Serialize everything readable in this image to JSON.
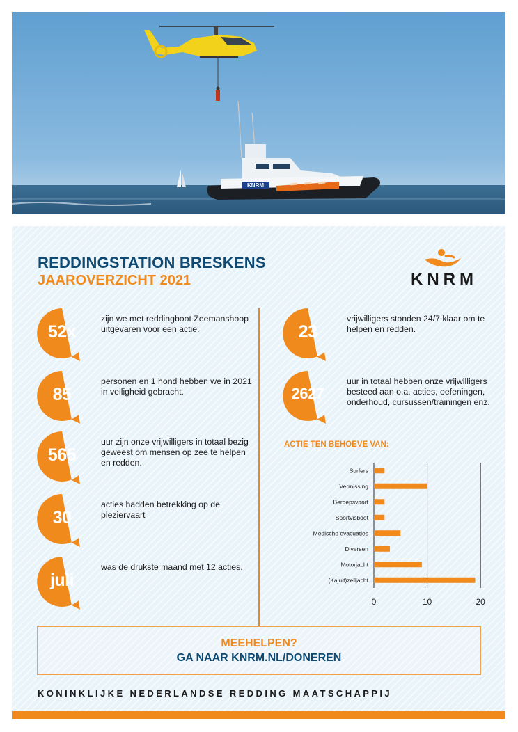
{
  "colors": {
    "orange": "#f18a1c",
    "navy": "#0e4a73",
    "panel": "#e9f3fa"
  },
  "hero": {
    "image": "photo of yellow rescue helicopter hoisting a person above the KNRM lifeboat at sea",
    "boat_label": "KNRM"
  },
  "header": {
    "title": "REDDINGSTATION BRESKENS",
    "subtitle": "JAAROVERZICHT 2021"
  },
  "logo": {
    "text": "KNRM",
    "icon": "knrm-figure-icon"
  },
  "stats_left": [
    {
      "value": "52x",
      "text": "zijn we met reddingboot Zeemanshoop uitgevaren voor een actie."
    },
    {
      "value": "85",
      "text": "personen en 1 hond hebben we in 2021 in veiligheid gebracht."
    },
    {
      "value": "565",
      "text": "uur zijn onze vrijwilligers in totaal bezig geweest om mensen op zee te helpen en redden."
    },
    {
      "value": "30",
      "text": "acties hadden betrekking op de pleziervaart"
    },
    {
      "value": "juli",
      "text": "was de drukste maand met 12 acties."
    }
  ],
  "stats_right": [
    {
      "value": "23",
      "text": "vrijwilligers stonden 24/7 klaar om te helpen en redden."
    },
    {
      "value": "2627",
      "text": "uur in totaal hebben onze vrijwilligers besteed aan o.a. acties, oefeningen, onderhoud, cursussen/trainingen enz."
    }
  ],
  "chart_title": "ACTIE TEN BEHOEVE VAN:",
  "chart_data": {
    "type": "bar",
    "orientation": "horizontal",
    "title": "ACTIE TEN BEHOEVE VAN:",
    "xlabel": "",
    "ylabel": "",
    "categories": [
      "Surfers",
      "Vermissing",
      "Beroepsvaart",
      "Sportvisboot",
      "Medische evacuaties",
      "Diversen",
      "Motorjacht",
      "(Kajuit)zeiljacht"
    ],
    "values": [
      2,
      10,
      2,
      2,
      5,
      3,
      9,
      19
    ],
    "xlim": [
      0,
      20
    ],
    "xticks": [
      "0",
      "10",
      "20"
    ],
    "grid": "vertical",
    "legend": "none",
    "bar_color": "#f18a1c"
  },
  "cta": {
    "line1": "MEEHELPEN?",
    "line2": "GA NAAR KNRM.NL/DONEREN"
  },
  "footer": {
    "text": "KONINKLIJKE NEDERLANDSE REDDING MAATSCHAPPIJ"
  }
}
